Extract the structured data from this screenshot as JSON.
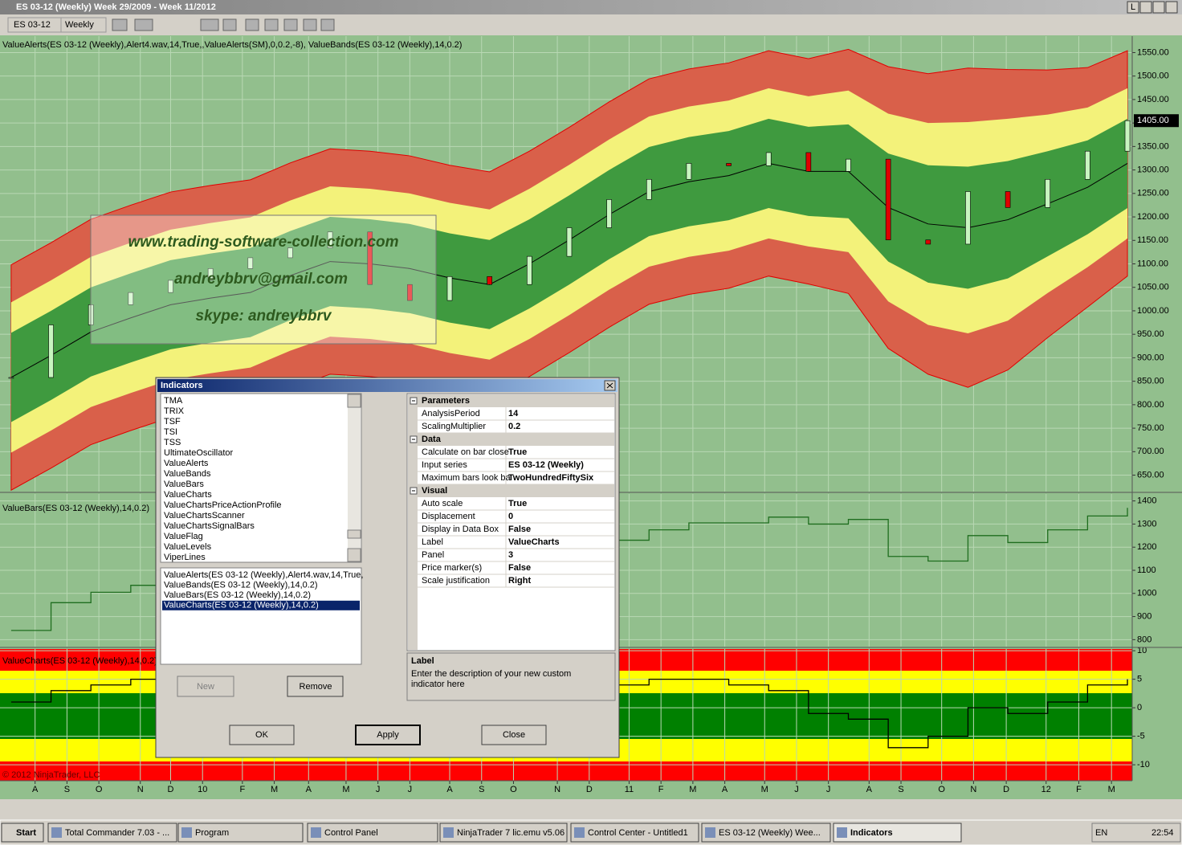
{
  "window": {
    "title": "ES 03-12 (Weekly)  Week 29/2009 - Week 11/2012",
    "mode_button": "L"
  },
  "toolbar": {
    "instrument": "ES 03-12",
    "period": "Weekly"
  },
  "chart_data": [
    {
      "type": "candlestick",
      "label": "ValueAlerts(ES 03-12 (Weekly),Alert4.wav,14,True,,ValueAlerts(SM),0,0.2,-8), ValueBands(ES 03-12 (Weekly),14,0.2)",
      "x": [
        0,
        5,
        10,
        15,
        20,
        25,
        30,
        35,
        40,
        45,
        50,
        55,
        60,
        65,
        70,
        75,
        80,
        85,
        90,
        95,
        100,
        105,
        110,
        115,
        120,
        125,
        130,
        135,
        140
      ],
      "close": [
        858,
        970,
        1013,
        1039,
        1065,
        1090,
        1113,
        1134,
        1168,
        1056,
        1022,
        1073,
        1056,
        1116,
        1177,
        1237,
        1280,
        1314,
        1309,
        1337,
        1297,
        1323,
        1151,
        1142,
        1254,
        1220,
        1280,
        1340,
        1405
      ],
      "middle": [
        858,
        905,
        955,
        985,
        1013,
        1027,
        1039,
        1075,
        1105,
        1100,
        1090,
        1070,
        1056,
        1100,
        1151,
        1205,
        1254,
        1275,
        1288,
        1314,
        1297,
        1297,
        1220,
        1185,
        1177,
        1194,
        1228,
        1263,
        1314
      ],
      "band_green": [
        95,
        95,
        95,
        95,
        95,
        95,
        95,
        95,
        95,
        95,
        95,
        95,
        95,
        95,
        95,
        95,
        95,
        95,
        95,
        95,
        95,
        100,
        115,
        125,
        130,
        125,
        112,
        100,
        95
      ],
      "band_yellow": [
        160,
        160,
        160,
        160,
        160,
        160,
        160,
        160,
        160,
        160,
        160,
        160,
        160,
        160,
        160,
        160,
        160,
        160,
        160,
        160,
        160,
        172,
        200,
        215,
        225,
        215,
        190,
        170,
        160
      ],
      "band_red": [
        240,
        240,
        240,
        240,
        240,
        240,
        240,
        240,
        240,
        240,
        240,
        240,
        240,
        240,
        240,
        240,
        240,
        240,
        240,
        240,
        240,
        260,
        300,
        320,
        340,
        320,
        285,
        255,
        240
      ],
      "xlim": [
        -1.4,
        140.6
      ],
      "ylim": [
        615,
        1585
      ],
      "yticks": [
        {
          "value": 1550,
          "label": "1550.00"
        },
        {
          "value": 1500,
          "label": "1500.00"
        },
        {
          "value": 1450,
          "label": "1450.00"
        },
        {
          "value": 1400,
          "label": "1400.00"
        },
        {
          "value": 1350,
          "label": "1350.00"
        },
        {
          "value": 1300,
          "label": "1300.00"
        },
        {
          "value": 1250,
          "label": "1250.00"
        },
        {
          "value": 1200,
          "label": "1200.00"
        },
        {
          "value": 1150,
          "label": "1150.00"
        },
        {
          "value": 1100,
          "label": "1100.00"
        },
        {
          "value": 1050,
          "label": "1050.00"
        },
        {
          "value": 1000,
          "label": "1000.00"
        },
        {
          "value": 950,
          "label": "950.00"
        },
        {
          "value": 900,
          "label": "900.00"
        },
        {
          "value": 850,
          "label": "850.00"
        },
        {
          "value": 800,
          "label": "800.00"
        },
        {
          "value": 750,
          "label": "750.00"
        },
        {
          "value": 700,
          "label": "700.00"
        },
        {
          "value": 650,
          "label": "650.00"
        }
      ],
      "last_price": {
        "value": 1405,
        "label": "1405.00"
      },
      "grid": true
    },
    {
      "type": "step",
      "label": "ValueBars(ES 03-12 (Weekly),14,0.2)",
      "x": [
        0,
        5,
        10,
        15,
        20,
        25,
        30,
        35,
        40,
        45,
        50,
        55,
        60,
        65,
        70,
        75,
        80,
        85,
        90,
        95,
        100,
        105,
        110,
        115,
        120,
        125,
        130,
        135,
        140
      ],
      "values": [
        840,
        960,
        1005,
        1035,
        1060,
        1085,
        1105,
        1130,
        1160,
        1060,
        1030,
        1070,
        1060,
        1110,
        1170,
        1230,
        1275,
        1305,
        1305,
        1330,
        1300,
        1320,
        1160,
        1140,
        1250,
        1220,
        1275,
        1335,
        1370
      ],
      "color": "#1f6e1f",
      "xlim": [
        -1.4,
        140.6
      ],
      "ylim": [
        770,
        1430
      ],
      "yticks": [
        1400,
        1300,
        1200,
        1100,
        1000,
        900,
        800
      ],
      "grid": true
    },
    {
      "type": "step",
      "label": "ValueCharts(ES 03-12 (Weekly),14,0.2)",
      "x": [
        0,
        5,
        10,
        15,
        20,
        25,
        30,
        35,
        40,
        45,
        50,
        55,
        60,
        65,
        70,
        75,
        80,
        85,
        90,
        95,
        100,
        105,
        110,
        115,
        120,
        125,
        130,
        135,
        140
      ],
      "values": [
        1,
        3,
        4,
        5,
        5,
        4,
        4,
        3,
        5,
        -2,
        -3,
        1,
        -1,
        2,
        3,
        4,
        5,
        5,
        4,
        3,
        -1,
        -2,
        -7,
        -5,
        0,
        -1,
        1,
        4,
        5
      ],
      "color": "#000000",
      "xlim": [
        -1.4,
        140.6
      ],
      "ylim": [
        -12.8,
        10.3
      ],
      "yticks": [
        10,
        5,
        0,
        -5,
        -10
      ],
      "xticks": [
        {
          "value": 3,
          "label": "A"
        },
        {
          "value": 7,
          "label": "S"
        },
        {
          "value": 11,
          "label": "O"
        },
        {
          "value": 16.2,
          "label": "N"
        },
        {
          "value": 20,
          "label": "D"
        },
        {
          "value": 24,
          "label": "10"
        },
        {
          "value": 29,
          "label": "F"
        },
        {
          "value": 33,
          "label": "M"
        },
        {
          "value": 37.3,
          "label": "A"
        },
        {
          "value": 42,
          "label": "M"
        },
        {
          "value": 46,
          "label": "J"
        },
        {
          "value": 50,
          "label": "J"
        },
        {
          "value": 55,
          "label": "A"
        },
        {
          "value": 59,
          "label": "S"
        },
        {
          "value": 63,
          "label": "O"
        },
        {
          "value": 68.5,
          "label": "N"
        },
        {
          "value": 72.5,
          "label": "D"
        },
        {
          "value": 77.5,
          "label": "11"
        },
        {
          "value": 81.5,
          "label": "F"
        },
        {
          "value": 85.5,
          "label": "M"
        },
        {
          "value": 89.5,
          "label": "A"
        },
        {
          "value": 94.5,
          "label": "M"
        },
        {
          "value": 98.5,
          "label": "J"
        },
        {
          "value": 102.5,
          "label": "J"
        },
        {
          "value": 107.6,
          "label": "A"
        },
        {
          "value": 111.6,
          "label": "S"
        },
        {
          "value": 116.7,
          "label": "O"
        },
        {
          "value": 120.7,
          "label": "N"
        },
        {
          "value": 124.8,
          "label": "D"
        },
        {
          "value": 129.8,
          "label": "12"
        },
        {
          "value": 133.9,
          "label": "F"
        },
        {
          "value": 138,
          "label": "M"
        }
      ],
      "grid": true
    }
  ],
  "watermark": [
    "www.trading-software-collection.com",
    "andreybbrv@gmail.com",
    "skype: andreybbrv"
  ],
  "copyright": "© 2012 NinjaTrader, LLC",
  "dialog": {
    "title": "Indicators",
    "available": [
      "TMA",
      "TRIX",
      "TSF",
      "TSI",
      "TSS",
      "UltimateOscillator",
      "ValueAlerts",
      "ValueBands",
      "ValueBars",
      "ValueCharts",
      "ValueChartsPriceActionProfile",
      "ValueChartsScanner",
      "ValueChartsSignalBars",
      "ValueFlag",
      "ValueLevels",
      "ViperLines"
    ],
    "applied": [
      "ValueAlerts(ES 03-12 (Weekly),Alert4.wav,14,True,",
      "ValueBands(ES 03-12 (Weekly),14,0.2)",
      "ValueBars(ES 03-12 (Weekly),14,0.2)",
      "ValueCharts(ES 03-12 (Weekly),14,0.2)"
    ],
    "selected": 3,
    "buttons": {
      "new": "New",
      "remove": "Remove",
      "ok": "OK",
      "apply": "Apply",
      "close": "Close"
    },
    "properties": [
      {
        "group": "Parameters",
        "rows": [
          [
            "AnalysisPeriod",
            "14"
          ],
          [
            "ScalingMultiplier",
            "0.2"
          ]
        ]
      },
      {
        "group": "Data",
        "rows": [
          [
            "Calculate on bar close",
            "True"
          ],
          [
            "Input series",
            "ES 03-12 (Weekly)"
          ],
          [
            "Maximum bars look ba",
            "TwoHundredFiftySix"
          ]
        ]
      },
      {
        "group": "Visual",
        "rows": [
          [
            "Auto scale",
            "True"
          ],
          [
            "Displacement",
            "0"
          ],
          [
            "Display in Data Box",
            "False"
          ],
          [
            "Label",
            "ValueCharts"
          ],
          [
            "Panel",
            "3"
          ],
          [
            "Price marker(s)",
            "False"
          ],
          [
            "Scale justification",
            "Right"
          ]
        ]
      }
    ],
    "help": {
      "title": "Label",
      "lines": [
        "Enter the description of your new custom",
        "indicator here"
      ]
    }
  },
  "taskbar": {
    "start": "Start",
    "items": [
      "Total Commander 7.03 - ...",
      "Program",
      "Control Panel",
      "NinjaTrader 7 lic.emu v5.06",
      "Control Center - Untitled1",
      "ES 03-12 (Weekly)  Wee...",
      "Indicators"
    ],
    "language": "EN",
    "clock": "22:54"
  }
}
